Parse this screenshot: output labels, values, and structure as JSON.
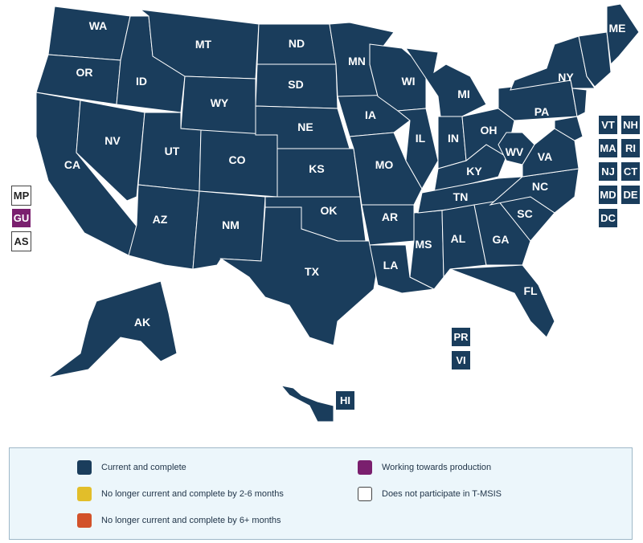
{
  "colors": {
    "current": "#1a3d5c",
    "lagging_2_6": "#e2be2a",
    "lagging_6plus": "#d2522a",
    "working": "#7a1f6e",
    "not_participating": "#ffffff"
  },
  "states": {
    "WA": "WA",
    "OR": "OR",
    "CA": "CA",
    "ID": "ID",
    "NV": "NV",
    "MT": "MT",
    "WY": "WY",
    "UT": "UT",
    "AZ": "AZ",
    "CO": "CO",
    "NM": "NM",
    "ND": "ND",
    "SD": "SD",
    "NE": "NE",
    "KS": "KS",
    "OK": "OK",
    "TX": "TX",
    "MN": "MN",
    "IA": "IA",
    "MO": "MO",
    "AR": "AR",
    "LA": "LA",
    "WI": "WI",
    "IL": "IL",
    "MS": "MS",
    "MI": "MI",
    "IN": "IN",
    "KY": "KY",
    "TN": "TN",
    "AL": "AL",
    "OH": "OH",
    "WV": "WV",
    "GA": "GA",
    "FL": "FL",
    "SC": "SC",
    "NC": "NC",
    "VA": "VA",
    "PA": "PA",
    "NY": "NY",
    "ME": "ME",
    "AK": "AK",
    "HI": "HI"
  },
  "northeast_boxes": [
    "VT",
    "NH",
    "MA",
    "RI",
    "NJ",
    "CT",
    "MD",
    "DE",
    "DC"
  ],
  "caribbean_boxes": [
    "PR",
    "VI"
  ],
  "pacific_boxes": [
    {
      "label": "MP",
      "status": "not_participating"
    },
    {
      "label": "GU",
      "status": "working"
    },
    {
      "label": "AS",
      "status": "not_participating"
    }
  ],
  "legend": {
    "current": "Current and complete",
    "lagging_2_6": "No longer current and complete by 2-6 months",
    "lagging_6plus": "No longer current and complete by 6+ months",
    "working": "Working towards production",
    "not_participating": "Does not participate in T-MSIS"
  }
}
